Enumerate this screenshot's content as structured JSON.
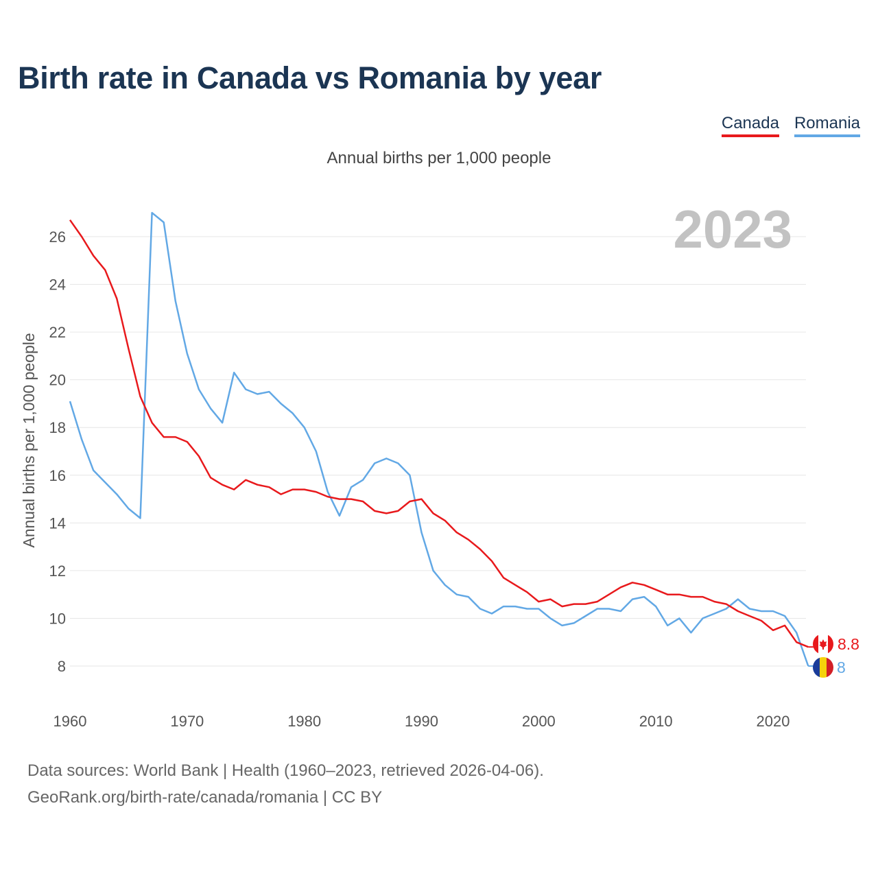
{
  "title": "Birth rate in Canada vs Romania by year",
  "subtitle": "Annual births per 1,000 people",
  "legend": [
    {
      "label": "Canada",
      "color": "#e8191c"
    },
    {
      "label": "Romania",
      "color": "#62a8e5"
    }
  ],
  "year_label": "2023",
  "source_line1": "Data sources: World Bank | Health (1960–2023, retrieved 2026-04-06).",
  "source_line2": "GeoRank.org/birth-rate/canada/romania | CC BY",
  "chart_data": {
    "type": "line",
    "title": "Birth rate in Canada vs Romania by year",
    "xlabel": "",
    "ylabel": "Annual births per 1,000 people",
    "xlim": [
      1960,
      2023
    ],
    "ylim": [
      7,
      27.5
    ],
    "x_ticks": [
      1960,
      1970,
      1980,
      1990,
      2000,
      2010,
      2020
    ],
    "y_ticks": [
      8,
      10,
      12,
      14,
      16,
      18,
      20,
      22,
      24,
      26
    ],
    "grid": true,
    "x": [
      1960,
      1961,
      1962,
      1963,
      1964,
      1965,
      1966,
      1967,
      1968,
      1969,
      1970,
      1971,
      1972,
      1973,
      1974,
      1975,
      1976,
      1977,
      1978,
      1979,
      1980,
      1981,
      1982,
      1983,
      1984,
      1985,
      1986,
      1987,
      1988,
      1989,
      1990,
      1991,
      1992,
      1993,
      1994,
      1995,
      1996,
      1997,
      1998,
      1999,
      2000,
      2001,
      2002,
      2003,
      2004,
      2005,
      2006,
      2007,
      2008,
      2009,
      2010,
      2011,
      2012,
      2013,
      2014,
      2015,
      2016,
      2017,
      2018,
      2019,
      2020,
      2021,
      2022,
      2023
    ],
    "series": [
      {
        "name": "Canada",
        "color": "#e8191c",
        "end_label": "8.8",
        "values": [
          26.7,
          26.0,
          25.2,
          24.6,
          23.4,
          21.3,
          19.3,
          18.2,
          17.6,
          17.6,
          17.4,
          16.8,
          15.9,
          15.6,
          15.4,
          15.8,
          15.6,
          15.5,
          15.2,
          15.4,
          15.4,
          15.3,
          15.1,
          15.0,
          15.0,
          14.9,
          14.5,
          14.4,
          14.5,
          14.9,
          15.0,
          14.4,
          14.1,
          13.6,
          13.3,
          12.9,
          12.4,
          11.7,
          11.4,
          11.1,
          10.7,
          10.8,
          10.5,
          10.6,
          10.6,
          10.7,
          11.0,
          11.3,
          11.5,
          11.4,
          11.2,
          11.0,
          11.0,
          10.9,
          10.9,
          10.7,
          10.6,
          10.3,
          10.1,
          9.9,
          9.5,
          9.7,
          9.0,
          8.8
        ]
      },
      {
        "name": "Romania",
        "color": "#62a8e5",
        "end_label": "8",
        "values": [
          19.1,
          17.5,
          16.2,
          15.7,
          15.2,
          14.6,
          14.2,
          27.0,
          26.6,
          23.3,
          21.1,
          19.6,
          18.8,
          18.2,
          20.3,
          19.6,
          19.4,
          19.5,
          19.0,
          18.6,
          18.0,
          17.0,
          15.3,
          14.3,
          15.5,
          15.8,
          16.5,
          16.7,
          16.5,
          16.0,
          13.6,
          12.0,
          11.4,
          11.0,
          10.9,
          10.4,
          10.2,
          10.5,
          10.5,
          10.4,
          10.4,
          10.0,
          9.7,
          9.8,
          10.1,
          10.4,
          10.4,
          10.3,
          10.8,
          10.9,
          10.5,
          9.7,
          10.0,
          9.4,
          10.0,
          10.2,
          10.4,
          10.8,
          10.4,
          10.3,
          10.3,
          10.1,
          9.4,
          8.0
        ]
      }
    ]
  }
}
